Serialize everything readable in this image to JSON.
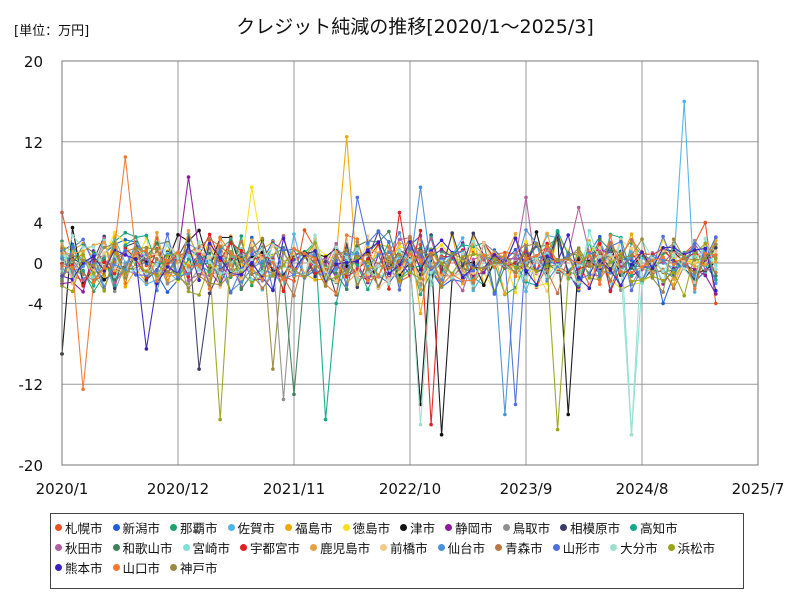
{
  "unit_label": "[単位：万円]",
  "title": "クレジット純減の推移[2020/1～2025/3]",
  "chart_data": {
    "type": "line",
    "ylim": [
      -20,
      20
    ],
    "yticks": [
      20,
      12,
      4,
      0,
      -4,
      -12,
      -20
    ],
    "xticks": [
      "2020/1",
      "2020/12",
      "2021/11",
      "2022/10",
      "2023/9",
      "2024/8",
      "2025/7"
    ],
    "x_start": "2020/1",
    "x_end": "2025/7",
    "grid": true,
    "legend_position": "bottom",
    "series": [
      {
        "name": "札幌市",
        "color": "#e8511f",
        "highlights": [
          [
            0,
            5
          ],
          [
            26,
            1.5
          ],
          [
            61,
            4
          ],
          [
            62,
            -4
          ]
        ]
      },
      {
        "name": "新潟市",
        "color": "#1f5fd6",
        "highlights": [
          [
            57,
            -4
          ],
          [
            62,
            2.5
          ]
        ]
      },
      {
        "name": "那覇市",
        "color": "#1aa36f",
        "highlights": [
          [
            6,
            3
          ],
          [
            29,
            1
          ]
        ]
      },
      {
        "name": "佐賀市",
        "color": "#4fb3e8",
        "highlights": [
          [
            55,
            0.5
          ],
          [
            59,
            16
          ],
          [
            61,
            2
          ]
        ]
      },
      {
        "name": "福島市",
        "color": "#f0a800",
        "highlights": [
          [
            27,
            12.5
          ],
          [
            34,
            -5
          ]
        ]
      },
      {
        "name": "徳島市",
        "color": "#f7e018",
        "highlights": [
          [
            18,
            7.5
          ],
          [
            16,
            -1
          ]
        ]
      },
      {
        "name": "津市",
        "color": "#111111",
        "highlights": [
          [
            0,
            -9
          ],
          [
            1,
            3.5
          ],
          [
            34,
            -14
          ],
          [
            36,
            -17
          ],
          [
            48,
            -15
          ]
        ]
      },
      {
        "name": "静岡市",
        "color": "#8b1a9c",
        "highlights": [
          [
            12,
            8.5
          ],
          [
            13,
            1
          ]
        ]
      },
      {
        "name": "鳥取市",
        "color": "#8f8f8f",
        "highlights": [
          [
            21,
            -13.5
          ],
          [
            22,
            -1
          ]
        ]
      },
      {
        "name": "相模原市",
        "color": "#3b3a66",
        "highlights": [
          [
            13,
            -10.5
          ],
          [
            14,
            -3
          ]
        ]
      },
      {
        "name": "高知市",
        "color": "#12a88a",
        "highlights": [
          [
            25,
            -15.5
          ],
          [
            26,
            -4
          ]
        ]
      },
      {
        "name": "秋田市",
        "color": "#b05fa0",
        "highlights": [
          [
            44,
            6.5
          ],
          [
            49,
            5.5
          ]
        ]
      },
      {
        "name": "和歌山市",
        "color": "#3f7f5c",
        "highlights": [
          [
            22,
            -13
          ],
          [
            15,
            -2
          ]
        ]
      },
      {
        "name": "宮崎市",
        "color": "#7fe0d8",
        "highlights": [
          [
            54,
            -17
          ],
          [
            55,
            -2
          ]
        ]
      },
      {
        "name": "宇都宮市",
        "color": "#e02020",
        "highlights": [
          [
            32,
            5
          ],
          [
            35,
            -16
          ]
        ]
      },
      {
        "name": "鹿児島市",
        "color": "#e6a23c",
        "highlights": [
          [
            9,
            3
          ],
          [
            27,
            -2
          ]
        ]
      },
      {
        "name": "前橋市",
        "color": "#f5c98a",
        "highlights": [
          [
            4,
            1
          ],
          [
            39,
            -1
          ]
        ]
      },
      {
        "name": "仙台市",
        "color": "#4a90d9",
        "highlights": [
          [
            34,
            7.5
          ],
          [
            42,
            -15
          ]
        ]
      },
      {
        "name": "青森市",
        "color": "#b8784a",
        "highlights": [
          [
            7,
            1.5
          ],
          [
            47,
            -3
          ]
        ]
      },
      {
        "name": "山形市",
        "color": "#4f6fe0",
        "highlights": [
          [
            28,
            6.5
          ],
          [
            43,
            -14
          ]
        ]
      },
      {
        "name": "大分市",
        "color": "#9ee0cf",
        "highlights": [
          [
            34,
            -16
          ],
          [
            54,
            -17
          ]
        ]
      },
      {
        "name": "浜松市",
        "color": "#9aa41a",
        "highlights": [
          [
            15,
            -15.5
          ],
          [
            47,
            -16.5
          ]
        ]
      },
      {
        "name": "熊本市",
        "color": "#3a20c0",
        "highlights": [
          [
            8,
            -8.5
          ],
          [
            9,
            -2
          ]
        ]
      },
      {
        "name": "山口市",
        "color": "#f07830",
        "highlights": [
          [
            6,
            10.5
          ],
          [
            2,
            -12.5
          ]
        ]
      },
      {
        "name": "神戸市",
        "color": "#9a8a40",
        "highlights": [
          [
            20,
            -10.5
          ],
          [
            14,
            -2
          ]
        ]
      }
    ]
  }
}
